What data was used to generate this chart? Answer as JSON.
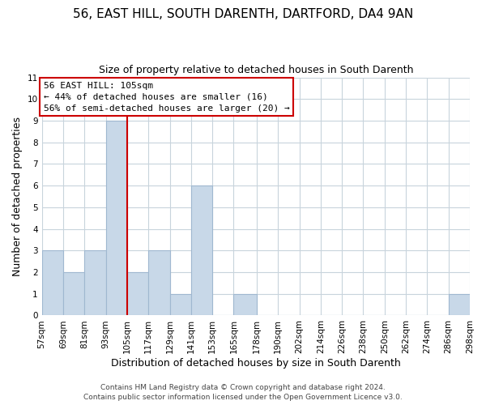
{
  "title": "56, EAST HILL, SOUTH DARENTH, DARTFORD, DA4 9AN",
  "subtitle": "Size of property relative to detached houses in South Darenth",
  "xlabel": "Distribution of detached houses by size in South Darenth",
  "ylabel": "Number of detached properties",
  "bin_edges": [
    57,
    69,
    81,
    93,
    105,
    117,
    129,
    141,
    153,
    165,
    178,
    190,
    202,
    214,
    226,
    238,
    250,
    262,
    274,
    286,
    298
  ],
  "bar_heights": [
    3,
    2,
    3,
    9,
    2,
    3,
    1,
    6,
    0,
    1,
    0,
    0,
    0,
    0,
    0,
    0,
    0,
    0,
    0,
    1
  ],
  "bar_color": "#c8d8e8",
  "bar_edgecolor": "#a0b8d0",
  "vline_x": 105,
  "vline_color": "#cc0000",
  "ylim": [
    0,
    11
  ],
  "yticks": [
    0,
    1,
    2,
    3,
    4,
    5,
    6,
    7,
    8,
    9,
    10,
    11
  ],
  "xtick_labels": [
    "57sqm",
    "69sqm",
    "81sqm",
    "93sqm",
    "105sqm",
    "117sqm",
    "129sqm",
    "141sqm",
    "153sqm",
    "165sqm",
    "178sqm",
    "190sqm",
    "202sqm",
    "214sqm",
    "226sqm",
    "238sqm",
    "250sqm",
    "262sqm",
    "274sqm",
    "286sqm",
    "298sqm"
  ],
  "xtick_positions": [
    57,
    69,
    81,
    93,
    105,
    117,
    129,
    141,
    153,
    165,
    178,
    190,
    202,
    214,
    226,
    238,
    250,
    262,
    274,
    286,
    298
  ],
  "annotation_title": "56 EAST HILL: 105sqm",
  "annotation_line1": "← 44% of detached houses are smaller (16)",
  "annotation_line2": "56% of semi-detached houses are larger (20) →",
  "footer1": "Contains HM Land Registry data © Crown copyright and database right 2024.",
  "footer2": "Contains public sector information licensed under the Open Government Licence v3.0.",
  "background_color": "#ffffff",
  "grid_color": "#c8d4dc",
  "title_fontsize": 11,
  "subtitle_fontsize": 9,
  "axis_label_fontsize": 9,
  "tick_fontsize": 7.5,
  "annotation_fontsize": 8,
  "footer_fontsize": 6.5
}
